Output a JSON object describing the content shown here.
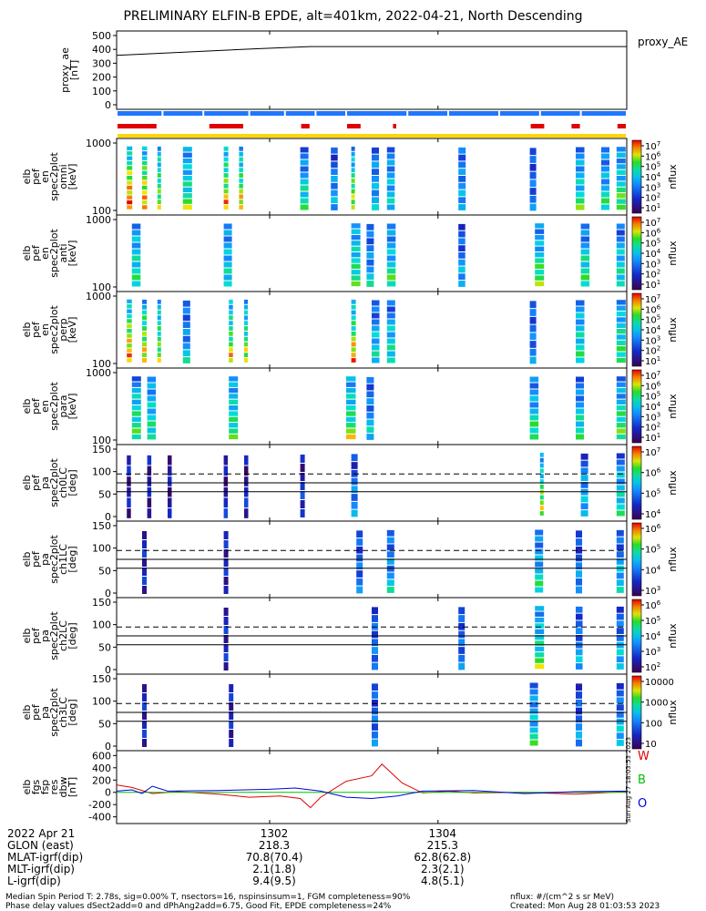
{
  "title": "PRELIMINARY ELFIN-B EPDE, alt=401km, 2022-04-21, North Descending",
  "chart_data": [
    {
      "type": "line",
      "panel": "proxy_ae",
      "ylabel": [
        "proxy_ae",
        "[nT]"
      ],
      "yticks": [
        "500",
        "400",
        "300",
        "200",
        "100",
        "0"
      ],
      "ylim": [
        0,
        500
      ],
      "legend": "proxy_AE",
      "series": [
        {
          "name": "proxy_AE",
          "x": [
            0,
            0.28,
            0.38,
            1
          ],
          "values": [
            360,
            410,
            425,
            425
          ]
        }
      ]
    },
    {
      "type": "bar",
      "panel": "status bars",
      "rows": [
        {
          "color": "#1e78ff",
          "segments": [
            [
              0.0,
              0.09
            ],
            [
              0.09,
              0.17
            ],
            [
              0.17,
              0.26
            ],
            [
              0.26,
              0.33
            ],
            [
              0.33,
              0.39
            ],
            [
              0.39,
              0.45
            ],
            [
              0.45,
              0.57
            ],
            [
              0.57,
              0.65
            ],
            [
              0.65,
              0.75
            ],
            [
              0.75,
              0.83
            ],
            [
              0.83,
              0.91
            ],
            [
              0.91,
              1.0
            ]
          ]
        },
        {
          "color": "#e00000",
          "segments": [
            [
              0.0,
              0.08
            ],
            [
              0.18,
              0.25
            ],
            [
              0.36,
              0.38
            ],
            [
              0.45,
              0.48
            ],
            [
              0.54,
              0.55
            ],
            [
              0.81,
              0.84
            ],
            [
              0.89,
              0.91
            ],
            [
              0.98,
              1.0
            ]
          ]
        },
        {
          "color": "#ffd700",
          "segments": [
            [
              0.0,
              1.0
            ]
          ]
        }
      ]
    },
    {
      "type": "heatmap",
      "panel": "spec omni",
      "ylabel": [
        "elb",
        "pef",
        "en",
        "spec2plot",
        "omni",
        "[keV]"
      ],
      "yticks": [
        "1000",
        "100"
      ],
      "colorbar": {
        "label": "nflux",
        "ticks": [
          "10^7",
          "10^6",
          "10^5",
          "10^4",
          "10^3",
          "10^2",
          "10^1"
        ]
      },
      "columns": [
        {
          "x": 0.02,
          "v": 0.9
        },
        {
          "x": 0.05,
          "v": 0.85
        },
        {
          "x": 0.08,
          "v": 0.7
        },
        {
          "x": 0.13,
          "v": 0.6
        },
        {
          "x": 0.21,
          "v": 0.8
        },
        {
          "x": 0.24,
          "v": 0.75
        },
        {
          "x": 0.36,
          "v": 0.5
        },
        {
          "x": 0.42,
          "v": 0.35
        },
        {
          "x": 0.46,
          "v": 0.7
        },
        {
          "x": 0.5,
          "v": 0.4
        },
        {
          "x": 0.53,
          "v": 0.45
        },
        {
          "x": 0.67,
          "v": 0.4
        },
        {
          "x": 0.81,
          "v": 0.3
        },
        {
          "x": 0.9,
          "v": 0.55
        },
        {
          "x": 0.95,
          "v": 0.5
        },
        {
          "x": 0.98,
          "v": 0.6
        }
      ]
    },
    {
      "type": "heatmap",
      "panel": "spec anti",
      "ylabel": [
        "elb",
        "pef",
        "en",
        "spec2plot",
        "anti",
        "[keV]"
      ],
      "yticks": [
        "1000",
        "100"
      ],
      "colorbar": {
        "label": "nflux",
        "ticks": [
          "10^7",
          "10^6",
          "10^5",
          "10^4",
          "10^3",
          "10^2",
          "10^1"
        ]
      },
      "columns": [
        {
          "x": 0.03,
          "v": 0.55
        },
        {
          "x": 0.21,
          "v": 0.5
        },
        {
          "x": 0.46,
          "v": 0.6
        },
        {
          "x": 0.49,
          "v": 0.4
        },
        {
          "x": 0.53,
          "v": 0.55
        },
        {
          "x": 0.67,
          "v": 0.35
        },
        {
          "x": 0.82,
          "v": 0.6
        },
        {
          "x": 0.91,
          "v": 0.55
        },
        {
          "x": 0.98,
          "v": 0.5
        }
      ]
    },
    {
      "type": "heatmap",
      "panel": "spec perp",
      "ylabel": [
        "elb",
        "pef",
        "en",
        "spec2plot",
        "perp",
        "[keV]"
      ],
      "yticks": [
        "1000",
        "100"
      ],
      "colorbar": {
        "label": "nflux",
        "ticks": [
          "10^7",
          "10^6",
          "10^5",
          "10^4",
          "10^3",
          "10^2",
          "10^1"
        ]
      },
      "columns": [
        {
          "x": 0.02,
          "v": 0.85
        },
        {
          "x": 0.05,
          "v": 0.8
        },
        {
          "x": 0.08,
          "v": 0.7
        },
        {
          "x": 0.13,
          "v": 0.4
        },
        {
          "x": 0.22,
          "v": 0.75
        },
        {
          "x": 0.25,
          "v": 0.7
        },
        {
          "x": 0.46,
          "v": 0.8
        },
        {
          "x": 0.5,
          "v": 0.45
        },
        {
          "x": 0.53,
          "v": 0.5
        },
        {
          "x": 0.81,
          "v": 0.3
        },
        {
          "x": 0.9,
          "v": 0.55
        },
        {
          "x": 0.98,
          "v": 0.6
        }
      ]
    },
    {
      "type": "heatmap",
      "panel": "spec para",
      "ylabel": [
        "elb",
        "pef",
        "en",
        "spec2plot",
        "para",
        "[keV]"
      ],
      "yticks": [
        "1000",
        "100"
      ],
      "colorbar": {
        "label": "nflux",
        "ticks": [
          "10^7",
          "10^6",
          "10^5",
          "10^4",
          "10^3",
          "10^2",
          "10^1"
        ]
      },
      "columns": [
        {
          "x": 0.03,
          "v": 0.6
        },
        {
          "x": 0.06,
          "v": 0.55
        },
        {
          "x": 0.22,
          "v": 0.6
        },
        {
          "x": 0.45,
          "v": 0.65
        },
        {
          "x": 0.49,
          "v": 0.4
        },
        {
          "x": 0.81,
          "v": 0.55
        },
        {
          "x": 0.9,
          "v": 0.5
        },
        {
          "x": 0.98,
          "v": 0.6
        }
      ]
    },
    {
      "type": "heatmap",
      "panel": "pa ch0LC",
      "ylabel": [
        "elb",
        "pef",
        "pa",
        "spec2plot",
        "ch0LC",
        "[deg]"
      ],
      "yticks": [
        "150",
        "100",
        "50",
        "0"
      ],
      "ylim": [
        0,
        180
      ],
      "lines": {
        "dashed": 113,
        "solid": [
          90,
          67
        ]
      },
      "colorbar": {
        "label": "nflux",
        "ticks": [
          "10^7",
          "10^6",
          "10^5",
          "10^4"
        ]
      },
      "columns": [
        {
          "x": 0.02,
          "v": 0.05
        },
        {
          "x": 0.06,
          "v": 0.05
        },
        {
          "x": 0.1,
          "v": 0.05
        },
        {
          "x": 0.21,
          "v": 0.05
        },
        {
          "x": 0.25,
          "v": 0.05
        },
        {
          "x": 0.36,
          "v": 0.1
        },
        {
          "x": 0.46,
          "v": 0.3
        },
        {
          "x": 0.83,
          "v": 0.7
        },
        {
          "x": 0.91,
          "v": 0.4
        },
        {
          "x": 0.98,
          "v": 0.5
        }
      ]
    },
    {
      "type": "heatmap",
      "panel": "pa ch1LC",
      "ylabel": [
        "elb",
        "pef",
        "pa",
        "spec2plot",
        "ch1LC",
        "[deg]"
      ],
      "yticks": [
        "150",
        "100",
        "50",
        "0"
      ],
      "ylim": [
        0,
        180
      ],
      "lines": {
        "dashed": 113,
        "solid": [
          90,
          67
        ]
      },
      "colorbar": {
        "label": "nflux",
        "ticks": [
          "10^6",
          "10^5",
          "10^4",
          "10^3"
        ]
      },
      "columns": [
        {
          "x": 0.05,
          "v": 0.1
        },
        {
          "x": 0.21,
          "v": 0.1
        },
        {
          "x": 0.47,
          "v": 0.3
        },
        {
          "x": 0.53,
          "v": 0.4
        },
        {
          "x": 0.82,
          "v": 0.5
        },
        {
          "x": 0.9,
          "v": 0.3
        },
        {
          "x": 0.98,
          "v": 0.4
        }
      ]
    },
    {
      "type": "heatmap",
      "panel": "pa ch2LC",
      "ylabel": [
        "elb",
        "pef",
        "pa",
        "spec2plot",
        "ch2LC",
        "[deg]"
      ],
      "yticks": [
        "150",
        "100",
        "50",
        "0"
      ],
      "ylim": [
        0,
        180
      ],
      "lines": {
        "dashed": 113,
        "solid": [
          90,
          67
        ]
      },
      "colorbar": {
        "label": "nflux",
        "ticks": [
          "10^6",
          "10^5",
          "10^4",
          "10^3",
          "10^2"
        ]
      },
      "columns": [
        {
          "x": 0.21,
          "v": 0.1
        },
        {
          "x": 0.5,
          "v": 0.3
        },
        {
          "x": 0.67,
          "v": 0.3
        },
        {
          "x": 0.82,
          "v": 0.6
        },
        {
          "x": 0.9,
          "v": 0.35
        },
        {
          "x": 0.98,
          "v": 0.4
        }
      ]
    },
    {
      "type": "heatmap",
      "panel": "pa ch3LC",
      "ylabel": [
        "elb",
        "pef",
        "pa",
        "spec2plot",
        "ch3LC",
        "[deg]"
      ],
      "yticks": [
        "150",
        "100",
        "50",
        "0"
      ],
      "ylim": [
        0,
        180
      ],
      "lines": {
        "dashed": 113,
        "solid": [
          90,
          67
        ]
      },
      "colorbar": {
        "label": "nflux",
        "ticks": [
          "10000",
          "1000",
          "100",
          "10"
        ]
      },
      "columns": [
        {
          "x": 0.05,
          "v": 0.1
        },
        {
          "x": 0.22,
          "v": 0.1
        },
        {
          "x": 0.5,
          "v": 0.3
        },
        {
          "x": 0.81,
          "v": 0.5
        },
        {
          "x": 0.9,
          "v": 0.3
        },
        {
          "x": 0.98,
          "v": 0.4
        }
      ]
    },
    {
      "type": "line",
      "panel": "fgs",
      "ylabel": [
        "elb",
        "fgs",
        "fsp",
        "res",
        "dbw",
        "[nT]"
      ],
      "yticks": [
        "600",
        "400",
        "200",
        "0",
        "-200",
        "-400"
      ],
      "ylim": [
        -450,
        620
      ],
      "legend_items": [
        {
          "label": "W",
          "color": "#e00000"
        },
        {
          "label": "B",
          "color": "#00c000"
        },
        {
          "label": "O",
          "color": "#0000e0"
        }
      ],
      "series": [
        {
          "name": "W",
          "color": "#e00000",
          "x": [
            0,
            0.03,
            0.07,
            0.12,
            0.2,
            0.26,
            0.32,
            0.36,
            0.38,
            0.4,
            0.45,
            0.5,
            0.52,
            0.56,
            0.6,
            0.65,
            0.7,
            0.8,
            0.9,
            1
          ],
          "values": [
            120,
            80,
            -20,
            10,
            -30,
            -80,
            -60,
            -100,
            -250,
            -80,
            180,
            270,
            460,
            150,
            -10,
            20,
            -10,
            0,
            -30,
            10
          ]
        },
        {
          "name": "B",
          "color": "#00c000",
          "x": [
            0,
            1
          ],
          "values": [
            0,
            0
          ]
        },
        {
          "name": "O",
          "color": "#0000e0",
          "x": [
            0,
            0.03,
            0.05,
            0.07,
            0.1,
            0.2,
            0.3,
            0.35,
            0.4,
            0.45,
            0.5,
            0.55,
            0.6,
            0.7,
            0.8,
            0.9,
            1
          ],
          "values": [
            20,
            40,
            -20,
            100,
            20,
            30,
            50,
            70,
            20,
            -80,
            -100,
            -60,
            20,
            30,
            -20,
            10,
            20
          ]
        }
      ],
      "side_text": "Sun Aug 27 18:03:53 2023"
    }
  ],
  "time_table": {
    "rows": [
      [
        "2022 Apr 21",
        "1302",
        "1304"
      ],
      [
        "GLON (east)",
        "218.3",
        "215.3"
      ],
      [
        "MLAT-igrf(dip)",
        "70.8(70.4)",
        "62.8(62.8)"
      ],
      [
        "MLT-igrf(dip)",
        "2.1(1.8)",
        "2.3(2.1)"
      ],
      [
        "L-igrf(dip)",
        "9.4(9.5)",
        "4.8(5.1)"
      ]
    ],
    "tick_positions": [
      0.3,
      0.63
    ]
  },
  "footer": {
    "left1": "Median Spin Period T: 2.78s, sig=0.00% T, nsectors=16, nspinsinsum=1, FGM completeness=90%",
    "left2": "Phase delay values dSect2add=0 and dPhAng2add=6.75, Good Fit, EPDE completeness=24%",
    "right1": "nflux: #/(cm^2 s sr MeV)",
    "right2": "Created: Mon Aug 28 01:03:53 2023"
  }
}
